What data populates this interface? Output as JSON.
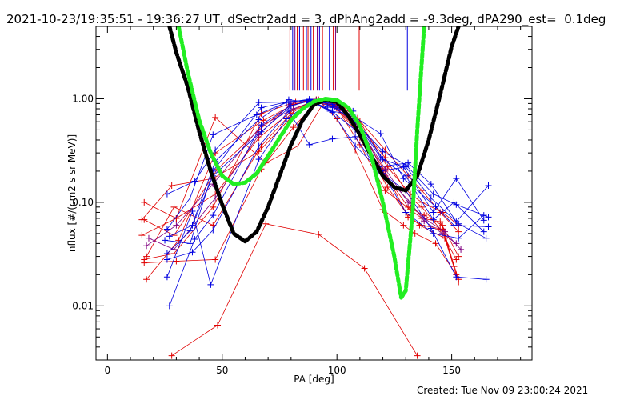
{
  "title": "2021-10-23/19:35:51 - 19:36:27 UT, dSectr2add = 3, dPhAng2add = -9.3deg, dPA290_est=  0.1deg",
  "created": "Created: Tue Nov 09 23:00:24 2021",
  "colors": {
    "red": "#e00000",
    "blue": "#0000e0",
    "purple": "#800080",
    "black": "#000000",
    "green": "#22ee22"
  },
  "chart_data": {
    "type": "line",
    "xlabel": "PA [deg]",
    "ylabel": "nflux [#/(cm2 s sr MeV)]",
    "xlim": [
      -5,
      185
    ],
    "ylim": [
      0.003,
      5.0
    ],
    "yscale": "log",
    "xticks": [
      0,
      50,
      100,
      150
    ],
    "xtick_labels": [
      "0",
      "50",
      "100",
      "150"
    ],
    "yticks": [
      0.01,
      0.1,
      1.0
    ],
    "ytick_labels": [
      "0.01",
      "0.10",
      "1.00"
    ],
    "grid": false,
    "markers": [
      {
        "color": "red",
        "x": 79.5,
        "y0": 1.2
      },
      {
        "color": "blue",
        "x": 80.7,
        "y0": 1.2
      },
      {
        "color": "purple",
        "x": 81.7,
        "y0": 1.2
      },
      {
        "color": "red",
        "x": 82.7,
        "y0": 1.2
      },
      {
        "color": "blue",
        "x": 83.7,
        "y0": 1.2
      },
      {
        "color": "red",
        "x": 85.4,
        "y0": 1.2
      },
      {
        "color": "blue",
        "x": 86.7,
        "y0": 1.2
      },
      {
        "color": "red",
        "x": 87.4,
        "y0": 1.2
      },
      {
        "color": "blue",
        "x": 88.7,
        "y0": 1.2
      },
      {
        "color": "red",
        "x": 89.7,
        "y0": 1.2
      },
      {
        "color": "purple",
        "x": 91.4,
        "y0": 1.2
      },
      {
        "color": "blue",
        "x": 92.4,
        "y0": 1.2
      },
      {
        "color": "red",
        "x": 93.7,
        "y0": 1.2
      },
      {
        "color": "blue",
        "x": 96.7,
        "y0": 1.2
      },
      {
        "color": "red",
        "x": 98.4,
        "y0": 1.2
      },
      {
        "color": "purple",
        "x": 99.4,
        "y0": 1.2
      },
      {
        "color": "red",
        "x": 109.7,
        "y0": 1.2
      },
      {
        "color": "blue",
        "x": 130.7,
        "y0": 1.2
      }
    ],
    "model_curves": [
      {
        "color": "black",
        "x": [
          27,
          30,
          35,
          40,
          45,
          50,
          55,
          60,
          65,
          70,
          75,
          80,
          85,
          90,
          95,
          100,
          105,
          110,
          115,
          120,
          125,
          130,
          135,
          140,
          145,
          150,
          153
        ],
        "y": [
          5.0,
          2.8,
          1.3,
          0.48,
          0.2,
          0.095,
          0.05,
          0.042,
          0.052,
          0.09,
          0.18,
          0.36,
          0.62,
          0.88,
          0.98,
          0.93,
          0.68,
          0.45,
          0.28,
          0.18,
          0.14,
          0.13,
          0.18,
          0.4,
          1.1,
          3.2,
          5.0
        ]
      },
      {
        "color": "green",
        "x": [
          31,
          35,
          40,
          45,
          50,
          55,
          60,
          65,
          70,
          75,
          80,
          85,
          90,
          95,
          100,
          105,
          110,
          115,
          120,
          125,
          128,
          130,
          133,
          135,
          138
        ],
        "y": [
          5.0,
          1.8,
          0.62,
          0.3,
          0.18,
          0.15,
          0.155,
          0.19,
          0.28,
          0.42,
          0.62,
          0.8,
          0.94,
          1.0,
          0.97,
          0.82,
          0.55,
          0.28,
          0.1,
          0.03,
          0.012,
          0.014,
          0.08,
          0.5,
          5.0
        ]
      }
    ],
    "series": [
      {
        "color": "red",
        "x": [
          16,
          30,
          47,
          67,
          81,
          92,
          100,
          108,
          120,
          129,
          134,
          143,
          152
        ],
        "y": [
          0.026,
          0.027,
          0.028,
          0.21,
          0.53,
          0.98,
          0.64,
          0.32,
          0.085,
          0.06,
          0.05,
          0.04,
          0.02
        ]
      },
      {
        "color": "red",
        "x": [
          15,
          30,
          47,
          69,
          83,
          94,
          103,
          110,
          122,
          130,
          136,
          147,
          153
        ],
        "y": [
          0.048,
          0.07,
          0.66,
          0.24,
          0.35,
          0.91,
          0.85,
          0.42,
          0.14,
          0.08,
          0.06,
          0.045,
          0.017
        ]
      },
      {
        "color": "red",
        "x": [
          15,
          28,
          46,
          66,
          80,
          91,
          101,
          111,
          121,
          131,
          137,
          146,
          153
        ],
        "y": [
          0.068,
          0.145,
          0.17,
          0.31,
          0.66,
          0.98,
          0.77,
          0.45,
          0.2,
          0.072,
          0.06,
          0.055,
          0.018
        ]
      },
      {
        "color": "red",
        "x": [
          17,
          29,
          46,
          67,
          80,
          90,
          99,
          109,
          121,
          131,
          137,
          145,
          153
        ],
        "y": [
          0.03,
          0.09,
          0.06,
          0.35,
          0.72,
          0.99,
          0.94,
          0.65,
          0.32,
          0.18,
          0.13,
          0.08,
          0.052
        ]
      },
      {
        "color": "red",
        "x": [
          16,
          30,
          47,
          66,
          81,
          90,
          99,
          109,
          121,
          132,
          137,
          145,
          152
        ],
        "y": [
          0.1,
          0.07,
          0.12,
          0.42,
          0.78,
          0.96,
          0.86,
          0.58,
          0.27,
          0.11,
          0.09,
          0.055,
          0.028
        ]
      },
      {
        "color": "red",
        "x": [
          16,
          29,
          48,
          66,
          80,
          90,
          98,
          108,
          120,
          131,
          138,
          146,
          151
        ],
        "y": [
          0.068,
          0.048,
          0.21,
          0.5,
          0.88,
          0.97,
          0.9,
          0.5,
          0.2,
          0.09,
          0.075,
          0.06,
          0.024
        ]
      },
      {
        "color": "red",
        "x": [
          17,
          31,
          47,
          68,
          81,
          91,
          100,
          110,
          121,
          132,
          137,
          145,
          153
        ],
        "y": [
          0.018,
          0.043,
          0.3,
          0.62,
          0.88,
          0.98,
          0.82,
          0.36,
          0.13,
          0.085,
          0.07,
          0.065,
          0.03
        ]
      },
      {
        "color": "red",
        "x": [
          16,
          29,
          46,
          67,
          82,
          92,
          101,
          110,
          122,
          132,
          137,
          146,
          153
        ],
        "y": [
          0.028,
          0.032,
          0.09,
          0.72,
          0.93,
          0.96,
          0.8,
          0.6,
          0.22,
          0.12,
          0.1,
          0.08,
          0.06
        ]
      },
      {
        "color": "red",
        "x": [
          28,
          48,
          69,
          92,
          112,
          135
        ],
        "y": [
          0.0033,
          0.0065,
          0.062,
          0.049,
          0.023,
          0.0033
        ]
      },
      {
        "color": "purple",
        "x": [
          18,
          29,
          47,
          66,
          80,
          90,
          99,
          109,
          121,
          131,
          138,
          147,
          154
        ],
        "y": [
          0.045,
          0.035,
          0.11,
          0.45,
          0.9,
          0.99,
          0.83,
          0.55,
          0.21,
          0.1,
          0.07,
          0.052,
          0.035
        ]
      },
      {
        "color": "purple",
        "x": [
          17,
          30,
          46,
          67,
          81,
          91,
          100,
          111,
          121,
          132,
          138,
          146,
          152
        ],
        "y": [
          0.038,
          0.06,
          0.15,
          0.55,
          0.8,
          0.97,
          0.88,
          0.5,
          0.18,
          0.1,
          0.066,
          0.05,
          0.04
        ]
      },
      {
        "color": "blue",
        "x": [
          26,
          37,
          46,
          66,
          79,
          88,
          98,
          108,
          118,
          130,
          141,
          152,
          165
        ],
        "y": [
          0.028,
          0.033,
          0.054,
          0.35,
          0.76,
          0.36,
          0.41,
          0.43,
          0.2,
          0.13,
          0.056,
          0.019,
          0.018
        ]
      },
      {
        "color": "blue",
        "x": [
          27,
          38,
          46,
          67,
          80,
          88,
          98,
          108,
          119,
          130,
          141,
          153,
          165
        ],
        "y": [
          0.01,
          0.044,
          0.075,
          0.56,
          0.86,
          0.95,
          0.74,
          0.35,
          0.2,
          0.22,
          0.11,
          0.062,
          0.045
        ]
      },
      {
        "color": "blue",
        "x": [
          25,
          36,
          46,
          67,
          79,
          88,
          98,
          108,
          120,
          130,
          142,
          152,
          166
        ],
        "y": [
          0.043,
          0.04,
          0.2,
          0.82,
          0.94,
          0.97,
          0.84,
          0.6,
          0.31,
          0.23,
          0.12,
          0.095,
          0.072
        ]
      },
      {
        "color": "blue",
        "x": [
          26,
          37,
          45,
          66,
          78,
          88,
          97,
          107,
          119,
          129,
          143,
          151,
          166
        ],
        "y": [
          0.019,
          0.082,
          0.016,
          0.26,
          0.64,
          0.91,
          0.92,
          0.68,
          0.46,
          0.17,
          0.091,
          0.06,
          0.058
        ]
      },
      {
        "color": "blue",
        "x": [
          26,
          36,
          47,
          66,
          79,
          88,
          96,
          107,
          118,
          131,
          141,
          152,
          166
        ],
        "y": [
          0.032,
          0.053,
          0.25,
          0.63,
          0.98,
          0.92,
          0.83,
          0.76,
          0.22,
          0.24,
          0.15,
          0.065,
          0.145
        ]
      },
      {
        "color": "blue",
        "x": [
          26,
          38,
          47,
          66,
          79,
          88,
          97,
          107,
          120,
          129,
          142,
          152,
          164
        ],
        "y": [
          0.12,
          0.16,
          0.32,
          0.92,
          0.93,
          0.98,
          0.76,
          0.71,
          0.26,
          0.22,
          0.08,
          0.17,
          0.067
        ]
      },
      {
        "color": "blue",
        "x": [
          26,
          36,
          46,
          65,
          78,
          88,
          98,
          108,
          119,
          130,
          142,
          151,
          164
        ],
        "y": [
          0.055,
          0.11,
          0.45,
          0.7,
          0.92,
          0.99,
          0.88,
          0.62,
          0.27,
          0.18,
          0.068,
          0.1,
          0.052
        ]
      },
      {
        "color": "blue",
        "x": [
          27,
          37,
          46,
          67,
          80,
          88,
          97,
          108,
          120,
          130,
          142,
          153,
          164
        ],
        "y": [
          0.047,
          0.06,
          0.18,
          0.48,
          0.85,
          0.96,
          0.78,
          0.5,
          0.19,
          0.08,
          0.05,
          0.045,
          0.075
        ]
      }
    ]
  }
}
